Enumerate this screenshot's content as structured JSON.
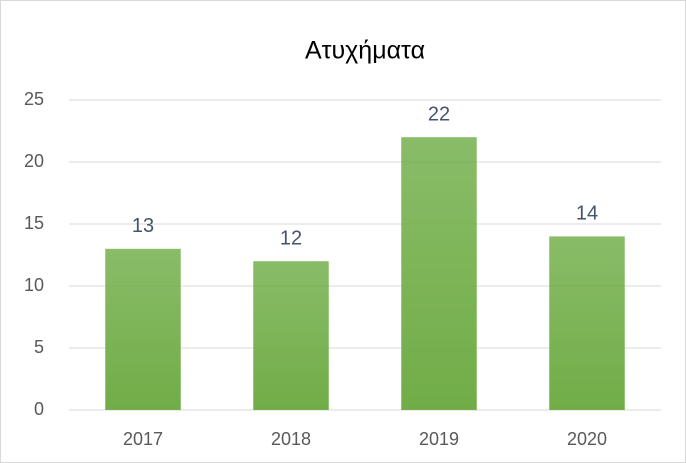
{
  "chart_data": {
    "type": "bar",
    "title": "Ατυχήματα",
    "categories": [
      "2017",
      "2018",
      "2019",
      "2020"
    ],
    "values": [
      13,
      12,
      22,
      14
    ],
    "color": "#70ad47",
    "ylim": [
      0,
      25
    ],
    "yticks": [
      0,
      5,
      10,
      15,
      20,
      25
    ],
    "grid": true
  }
}
